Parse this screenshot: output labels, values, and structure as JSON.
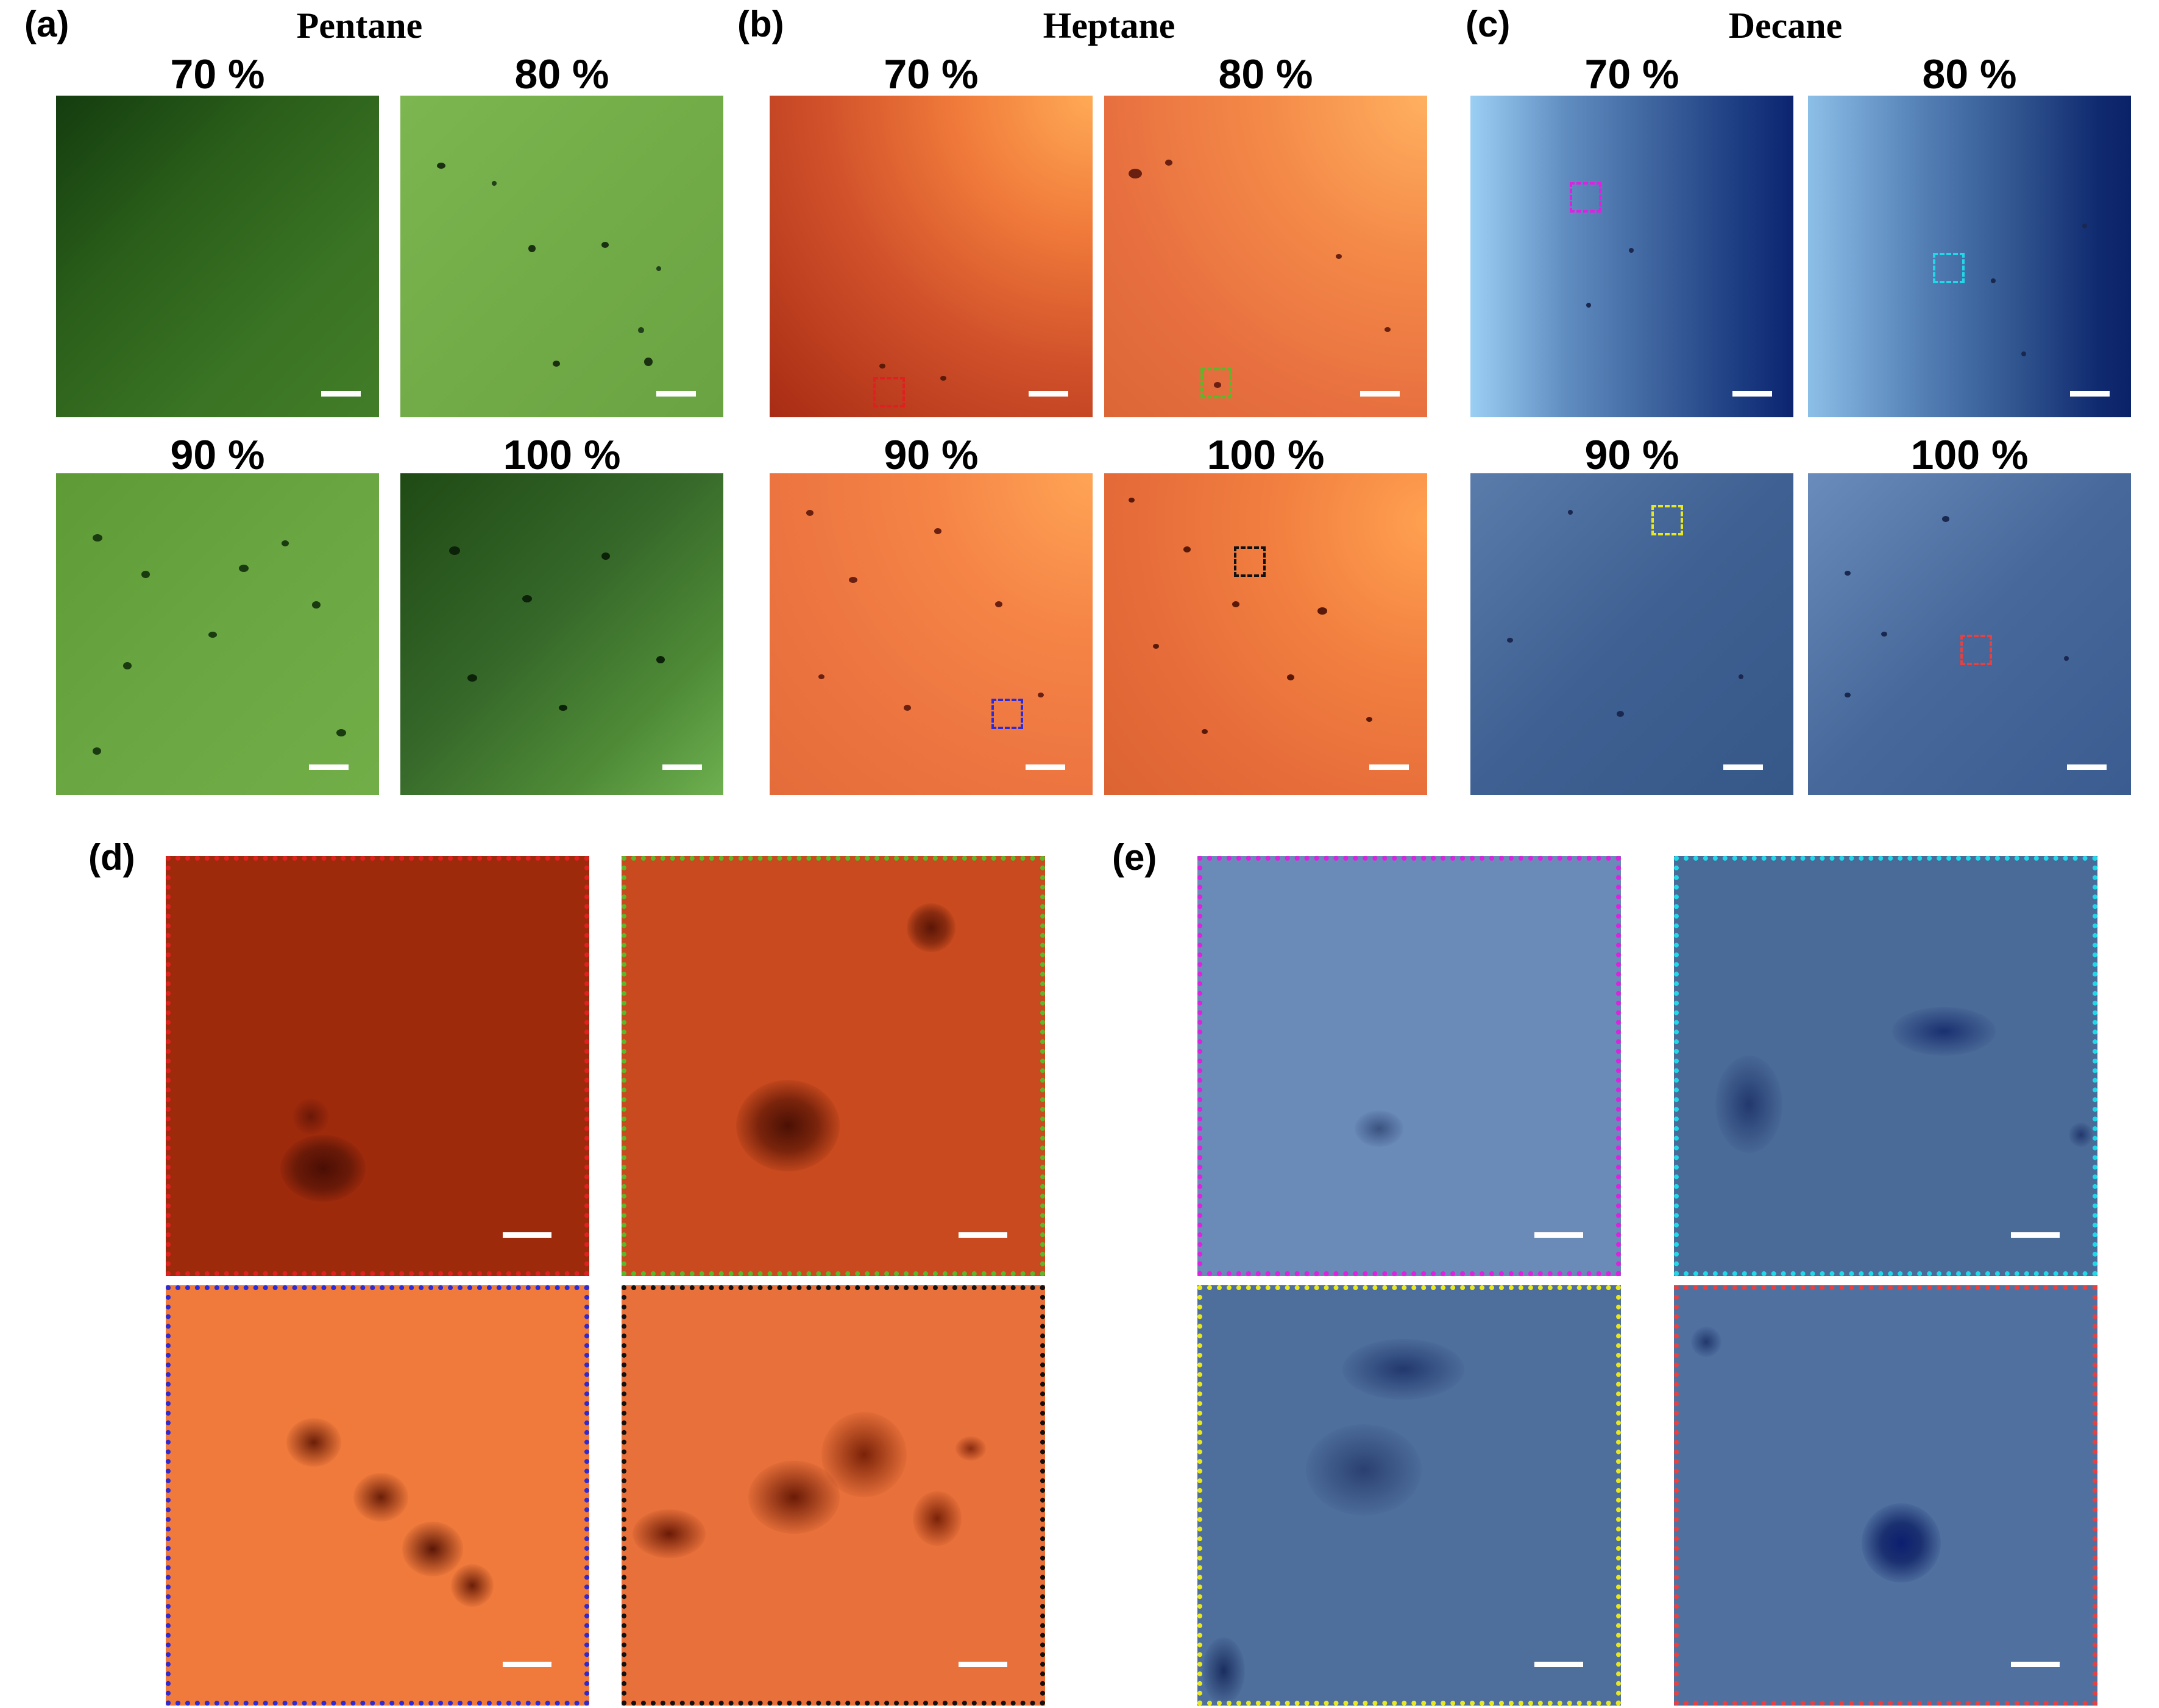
{
  "panels": {
    "a": {
      "label": "(a)",
      "solvent": "Pentane"
    },
    "b": {
      "label": "(b)",
      "solvent": "Heptane"
    },
    "c": {
      "label": "(c)",
      "solvent": "Decane"
    },
    "d": {
      "label": "(d)"
    },
    "e": {
      "label": "(e)"
    }
  },
  "concentrations": [
    "70 %",
    "80 %",
    "90 %",
    "100 %"
  ],
  "colors": {
    "pentane_green": "#5f9a34",
    "heptane_orange": "#e8632b",
    "decane_blue": "#2a4a82",
    "roi_red": "#e02020",
    "roi_green": "#5ab82a",
    "roi_blue": "#2b2bd8",
    "roi_black": "#111111",
    "roi_magenta": "#e020e0",
    "roi_cyan": "#20d8e8",
    "roi_yellow": "#e8e820",
    "roi_red_light": "#e84040"
  }
}
